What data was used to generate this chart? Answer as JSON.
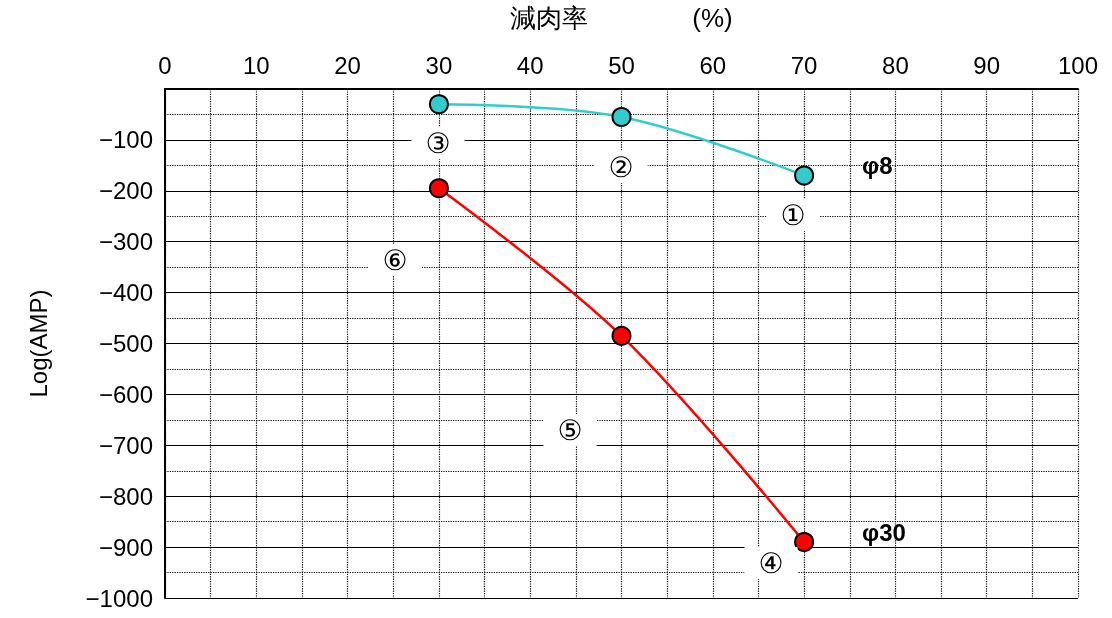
{
  "chart_data": {
    "type": "line",
    "xlabel": "減肉率　　　　(%)",
    "ylabel": "Log(AMP)",
    "x": [
      30,
      50,
      70
    ],
    "series": [
      {
        "name": "φ8",
        "color": "#33cccc",
        "values": [
          -30,
          -55,
          -170
        ]
      },
      {
        "name": "φ30",
        "color": "#ff0000",
        "values": [
          -195,
          -485,
          -890
        ]
      }
    ],
    "xlim": [
      0,
      100
    ],
    "xticks": [
      0,
      10,
      20,
      30,
      40,
      50,
      60,
      70,
      80,
      90,
      100
    ],
    "ylim": [
      -1000,
      0
    ],
    "yticks": [
      -100,
      -200,
      -300,
      -400,
      -500,
      -600,
      -700,
      -800,
      -900,
      -1000
    ],
    "annotations": [
      "①",
      "②",
      "③",
      "④",
      "⑤",
      "⑥"
    ],
    "grid": true,
    "legend": false,
    "marker": "circle",
    "line_style": "solid"
  }
}
